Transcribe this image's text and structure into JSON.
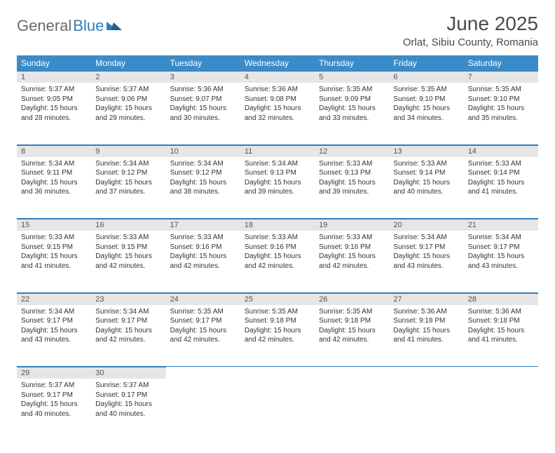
{
  "logo": {
    "part1": "General",
    "part2": "Blue"
  },
  "title": "June 2025",
  "location": "Orlat, Sibiu County, Romania",
  "colors": {
    "header_bg": "#3b8bc8",
    "header_text": "#ffffff",
    "border": "#2f7ec0",
    "daynum_bg": "#e6e6e6",
    "text": "#333333",
    "logo_gray": "#6b6b6b",
    "logo_blue": "#2f7ec0"
  },
  "weekdays": [
    "Sunday",
    "Monday",
    "Tuesday",
    "Wednesday",
    "Thursday",
    "Friday",
    "Saturday"
  ],
  "weeks": [
    [
      {
        "n": "1",
        "sr": "5:37 AM",
        "ss": "9:05 PM",
        "dl": "15 hours and 28 minutes."
      },
      {
        "n": "2",
        "sr": "5:37 AM",
        "ss": "9:06 PM",
        "dl": "15 hours and 29 minutes."
      },
      {
        "n": "3",
        "sr": "5:36 AM",
        "ss": "9:07 PM",
        "dl": "15 hours and 30 minutes."
      },
      {
        "n": "4",
        "sr": "5:36 AM",
        "ss": "9:08 PM",
        "dl": "15 hours and 32 minutes."
      },
      {
        "n": "5",
        "sr": "5:35 AM",
        "ss": "9:09 PM",
        "dl": "15 hours and 33 minutes."
      },
      {
        "n": "6",
        "sr": "5:35 AM",
        "ss": "9:10 PM",
        "dl": "15 hours and 34 minutes."
      },
      {
        "n": "7",
        "sr": "5:35 AM",
        "ss": "9:10 PM",
        "dl": "15 hours and 35 minutes."
      }
    ],
    [
      {
        "n": "8",
        "sr": "5:34 AM",
        "ss": "9:11 PM",
        "dl": "15 hours and 36 minutes."
      },
      {
        "n": "9",
        "sr": "5:34 AM",
        "ss": "9:12 PM",
        "dl": "15 hours and 37 minutes."
      },
      {
        "n": "10",
        "sr": "5:34 AM",
        "ss": "9:12 PM",
        "dl": "15 hours and 38 minutes."
      },
      {
        "n": "11",
        "sr": "5:34 AM",
        "ss": "9:13 PM",
        "dl": "15 hours and 39 minutes."
      },
      {
        "n": "12",
        "sr": "5:33 AM",
        "ss": "9:13 PM",
        "dl": "15 hours and 39 minutes."
      },
      {
        "n": "13",
        "sr": "5:33 AM",
        "ss": "9:14 PM",
        "dl": "15 hours and 40 minutes."
      },
      {
        "n": "14",
        "sr": "5:33 AM",
        "ss": "9:14 PM",
        "dl": "15 hours and 41 minutes."
      }
    ],
    [
      {
        "n": "15",
        "sr": "5:33 AM",
        "ss": "9:15 PM",
        "dl": "15 hours and 41 minutes."
      },
      {
        "n": "16",
        "sr": "5:33 AM",
        "ss": "9:15 PM",
        "dl": "15 hours and 42 minutes."
      },
      {
        "n": "17",
        "sr": "5:33 AM",
        "ss": "9:16 PM",
        "dl": "15 hours and 42 minutes."
      },
      {
        "n": "18",
        "sr": "5:33 AM",
        "ss": "9:16 PM",
        "dl": "15 hours and 42 minutes."
      },
      {
        "n": "19",
        "sr": "5:33 AM",
        "ss": "9:16 PM",
        "dl": "15 hours and 42 minutes."
      },
      {
        "n": "20",
        "sr": "5:34 AM",
        "ss": "9:17 PM",
        "dl": "15 hours and 43 minutes."
      },
      {
        "n": "21",
        "sr": "5:34 AM",
        "ss": "9:17 PM",
        "dl": "15 hours and 43 minutes."
      }
    ],
    [
      {
        "n": "22",
        "sr": "5:34 AM",
        "ss": "9:17 PM",
        "dl": "15 hours and 43 minutes."
      },
      {
        "n": "23",
        "sr": "5:34 AM",
        "ss": "9:17 PM",
        "dl": "15 hours and 42 minutes."
      },
      {
        "n": "24",
        "sr": "5:35 AM",
        "ss": "9:17 PM",
        "dl": "15 hours and 42 minutes."
      },
      {
        "n": "25",
        "sr": "5:35 AM",
        "ss": "9:18 PM",
        "dl": "15 hours and 42 minutes."
      },
      {
        "n": "26",
        "sr": "5:35 AM",
        "ss": "9:18 PM",
        "dl": "15 hours and 42 minutes."
      },
      {
        "n": "27",
        "sr": "5:36 AM",
        "ss": "9:18 PM",
        "dl": "15 hours and 41 minutes."
      },
      {
        "n": "28",
        "sr": "5:36 AM",
        "ss": "9:18 PM",
        "dl": "15 hours and 41 minutes."
      }
    ],
    [
      {
        "n": "29",
        "sr": "5:37 AM",
        "ss": "9:17 PM",
        "dl": "15 hours and 40 minutes."
      },
      {
        "n": "30",
        "sr": "5:37 AM",
        "ss": "9:17 PM",
        "dl": "15 hours and 40 minutes."
      },
      null,
      null,
      null,
      null,
      null
    ]
  ],
  "labels": {
    "sunrise": "Sunrise:",
    "sunset": "Sunset:",
    "daylight": "Daylight:"
  }
}
